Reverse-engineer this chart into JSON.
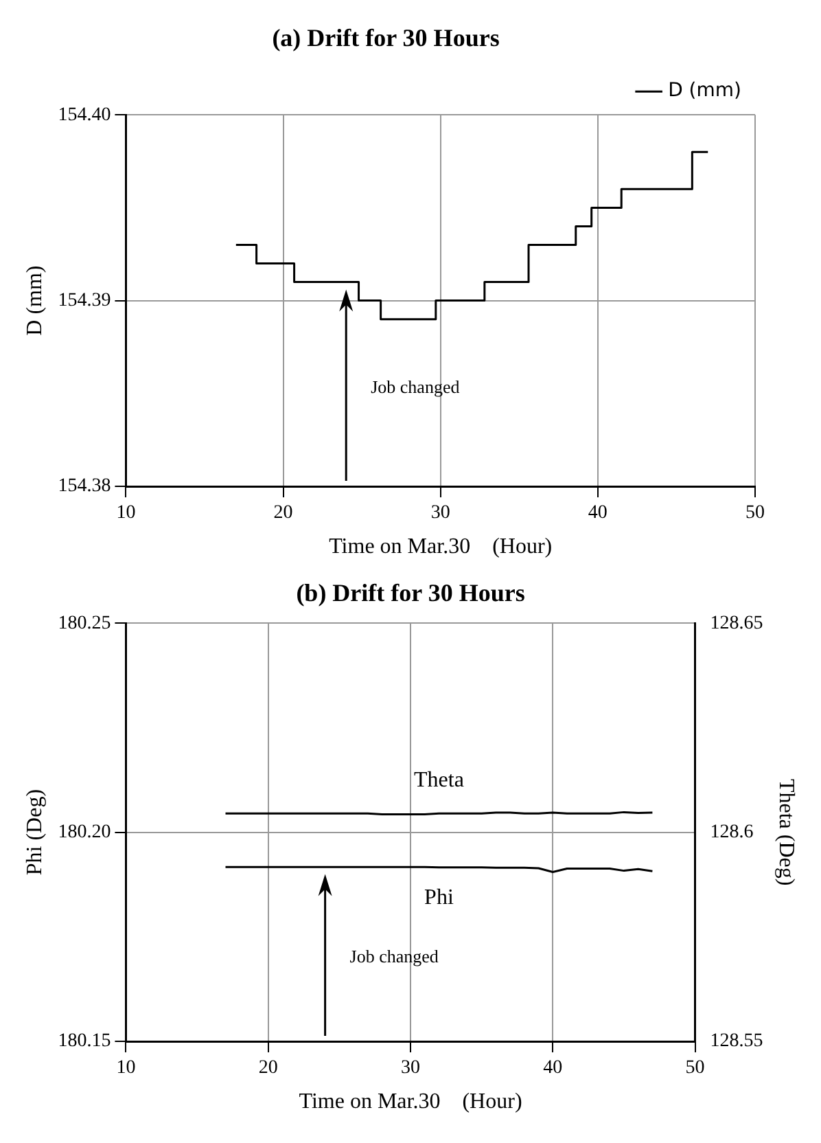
{
  "chart_data": [
    {
      "type": "step",
      "title": "(a) Drift for 30 Hours",
      "xlabel": "Time on Mar.30    (Hour)",
      "ylabel": "D (mm)",
      "x": [
        17,
        18.3,
        20.7,
        24.8,
        26.2,
        29.7,
        32.8,
        35.6,
        38.6,
        39.6,
        41.5,
        46,
        47
      ],
      "series": [
        {
          "name": "D (mm)",
          "color": "#000000",
          "values": [
            154.393,
            154.392,
            154.391,
            154.39,
            154.389,
            154.39,
            154.391,
            154.393,
            154.394,
            154.395,
            154.396,
            154.398,
            154.398
          ]
        }
      ],
      "xlim": [
        10,
        50
      ],
      "xticks": [
        10,
        20,
        30,
        40,
        50
      ],
      "ylim": [
        154.38,
        154.4
      ],
      "yticks": [
        {
          "value": 154.38,
          "label": "154.38"
        },
        {
          "value": 154.39,
          "label": "154.39"
        },
        {
          "value": 154.4,
          "label": "154.40"
        }
      ],
      "grid": true,
      "legend": "top right",
      "annotations": [
        "Job changed"
      ]
    },
    {
      "type": "line",
      "title": "(b) Drift for 30 Hours",
      "xlabel": "Time on Mar.30    (Hour)",
      "ylabel": "Phi (Deg)",
      "y2label": "Theta (Deg)",
      "x": [
        17,
        18,
        19,
        20,
        21,
        22,
        23,
        24,
        25,
        26,
        27,
        28,
        29,
        30,
        31,
        32,
        33,
        34,
        35,
        36,
        37,
        38,
        39,
        40,
        41,
        42,
        43,
        44,
        45,
        46,
        47
      ],
      "series": [
        {
          "name": "Theta",
          "color": "#000000",
          "axis": "y2",
          "values": [
            128.6045,
            128.6045,
            128.6045,
            128.6045,
            128.6045,
            128.6045,
            128.6045,
            128.6045,
            128.6045,
            128.6045,
            128.6045,
            128.6043,
            128.6043,
            128.6043,
            128.6043,
            128.6045,
            128.6045,
            128.6045,
            128.6045,
            128.6047,
            128.6047,
            128.6045,
            128.6045,
            128.6047,
            128.6045,
            128.6045,
            128.6045,
            128.6045,
            128.6048,
            128.6046,
            128.6047
          ]
        },
        {
          "name": "Phi",
          "color": "#000000",
          "values": [
            180.1917,
            180.1917,
            180.1917,
            180.1917,
            180.1917,
            180.1917,
            180.1917,
            180.1917,
            180.1917,
            180.1917,
            180.1917,
            180.1917,
            180.1917,
            180.1917,
            180.1917,
            180.1916,
            180.1916,
            180.1916,
            180.1916,
            180.1915,
            180.1915,
            180.1915,
            180.1914,
            180.1905,
            180.1913,
            180.1913,
            180.1913,
            180.1913,
            180.1908,
            180.1912,
            180.1907
          ]
        }
      ],
      "xlim": [
        10,
        50
      ],
      "xticks": [
        10,
        20,
        30,
        40,
        50
      ],
      "ylim": [
        180.15,
        180.25
      ],
      "yticks": [
        180.15,
        {
          "value": 180.2,
          "label": "180.20"
        },
        180.25
      ],
      "y2lim": [
        128.55,
        128.65
      ],
      "y2ticks": [
        128.55,
        128.6,
        128.65
      ],
      "grid": true,
      "annotations": [
        "Job changed"
      ]
    }
  ]
}
